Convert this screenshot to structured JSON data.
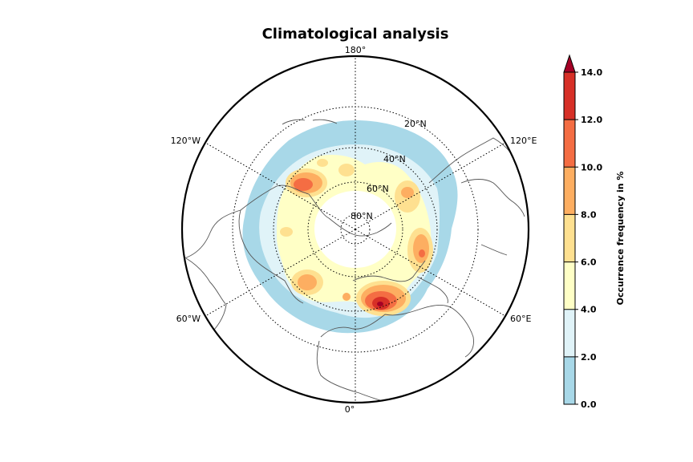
{
  "title": "Climatological analysis",
  "map": {
    "projection": "north polar stereographic",
    "longitude_labels": [
      "180°",
      "120°E",
      "60°E",
      "0°",
      "60°W",
      "120°W"
    ],
    "latitude_labels": [
      "20°N",
      "40°N",
      "60°N",
      "80°N"
    ]
  },
  "colorbar": {
    "label": "Occurrence frequency in %",
    "ticks": [
      "0.0",
      "2.0",
      "4.0",
      "6.0",
      "8.0",
      "10.0",
      "12.0",
      "14.0"
    ],
    "colors": [
      "#a8d8e8",
      "#e0f3f8",
      "#ffffc6",
      "#fee090",
      "#fdae61",
      "#f46d43",
      "#d73027"
    ],
    "extend_color": "#a50026",
    "extend": "max"
  }
}
